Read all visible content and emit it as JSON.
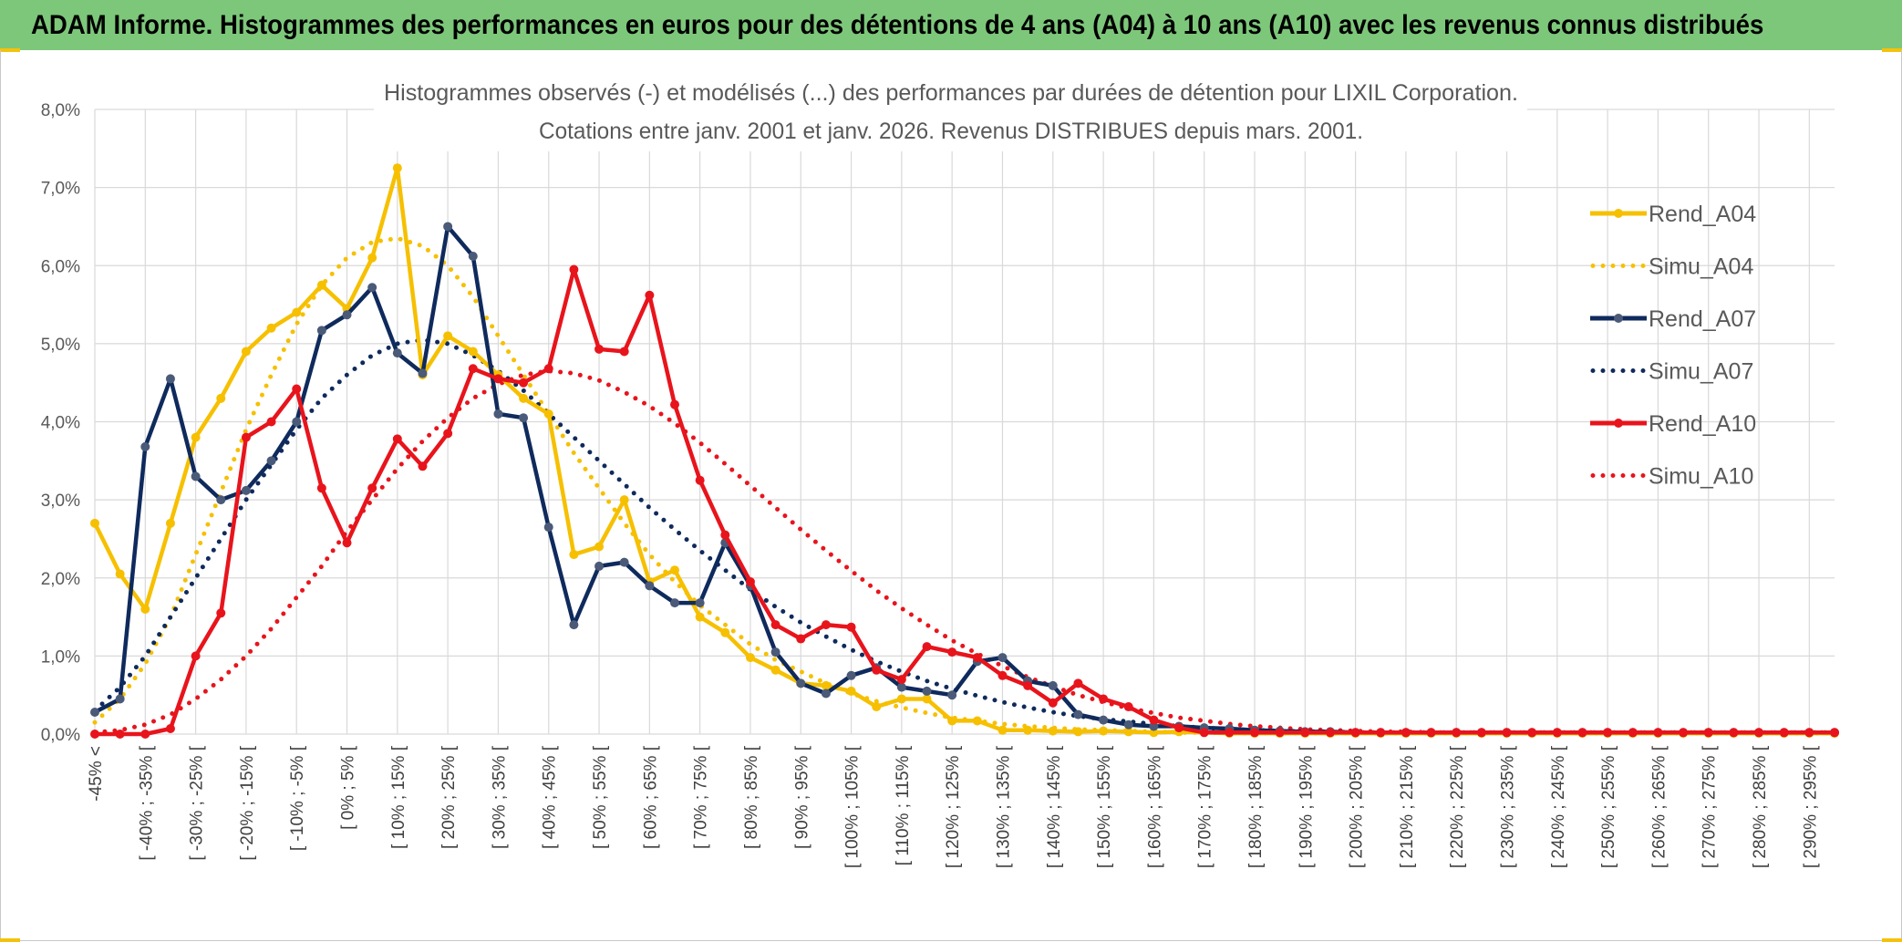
{
  "header": {
    "title": "ADAM Informe. Histogrammes des performances en euros pour des détentions de 4 ans (A04) à 10 ans (A10) avec les revenus connus distribués"
  },
  "chart_data": {
    "type": "line",
    "title": "Histogrammes observés (-) et modélisés (...) des performances par durées de détention pour LIXIL Corporation.",
    "subtitle": "Cotations entre janv. 2001 et janv. 2026. Revenus DISTRIBUES depuis mars. 2001.",
    "ylim": [
      0,
      8
    ],
    "yticks": [
      "0,0%",
      "1,0%",
      "2,0%",
      "3,0%",
      "4,0%",
      "5,0%",
      "6,0%",
      "7,0%",
      "8,0%"
    ],
    "x_labels": [
      "-45% <",
      "[ -40% ; -35% [",
      "[ -30% ; -25% [",
      "[ -20% ; -15% [",
      "[ -10% ; -5% [",
      "[ 0% ; 5% [",
      "[ 10% ; 15% [",
      "[ 20% ; 25% [",
      "[ 30% ; 35% [",
      "[ 40% ; 45% [",
      "[ 50% ; 55% [",
      "[ 60% ; 65% [",
      "[ 70% ; 75% [",
      "[ 80% ; 85% [",
      "[ 90% ; 95% [",
      "[ 100% ; 105% [",
      "[ 110% ; 115% [",
      "[ 120% ; 125% [",
      "[ 130% ; 135% [",
      "[ 140% ; 145% [",
      "[ 150% ; 155% [",
      "[ 160% ; 165% [",
      "[ 170% ; 175% [",
      "[ 180% ; 185% [",
      "[ 190% ; 195% [",
      "[ 200% ; 205% [",
      "[ 210% ; 215% [",
      "[ 220% ; 225% [",
      "[ 230% ; 235% [",
      "[ 240% ; 245% [",
      "[ 250% ; 255% [",
      "[ 260% ; 265% [",
      "[ 270% ; 275% [",
      "[ 280% ; 285% [",
      "[ 290% ; 295% ["
    ],
    "grid": true,
    "legend_position": "right",
    "series": [
      {
        "name": "Rend_A04",
        "style": "solid",
        "color": "#f6c000",
        "values": [
          2.7,
          2.05,
          1.6,
          2.7,
          3.8,
          4.3,
          4.9,
          5.2,
          5.4,
          5.75,
          5.45,
          6.1,
          7.25,
          4.6,
          5.1,
          4.9,
          4.6,
          4.3,
          4.1,
          2.3,
          2.4,
          3.0,
          1.95,
          2.1,
          1.5,
          1.3,
          0.98,
          0.82,
          0.65,
          0.62,
          0.55,
          0.35,
          0.45,
          0.45,
          0.17,
          0.17,
          0.05,
          0.05,
          0.04,
          0.03,
          0.04,
          0.03,
          0.02,
          0.03,
          0.02,
          0.01,
          0.01,
          0.01,
          0.01,
          0.01,
          0.01,
          0.01,
          0.01,
          0.01,
          0.01,
          0.01,
          0.01,
          0.01,
          0.01,
          0.01,
          0.01,
          0.01,
          0.01,
          0.01,
          0.01,
          0.01,
          0.01,
          0.01,
          0.01,
          0.01
        ]
      },
      {
        "name": "Simu_A04",
        "style": "dotted",
        "color": "#f6c000",
        "values": [
          0.15,
          0.45,
          0.9,
          1.5,
          2.3,
          3.1,
          3.9,
          4.6,
          5.25,
          5.75,
          6.1,
          6.3,
          6.35,
          6.25,
          6.0,
          5.6,
          5.1,
          4.6,
          4.1,
          3.6,
          3.15,
          2.7,
          2.3,
          1.95,
          1.65,
          1.4,
          1.15,
          0.95,
          0.8,
          0.65,
          0.52,
          0.42,
          0.34,
          0.27,
          0.21,
          0.17,
          0.13,
          0.1,
          0.08,
          0.06,
          0.05,
          0.04,
          0.03,
          0.02,
          0.02,
          0.01,
          0.01,
          0.01,
          0.01,
          0.01,
          0.01,
          0.01,
          0.01,
          0.01,
          0.01,
          0.01,
          0.01,
          0.01,
          0.01,
          0.01,
          0.01,
          0.01,
          0.01,
          0.01,
          0.01,
          0.01,
          0.01,
          0.01,
          0.01,
          0.01
        ]
      },
      {
        "name": "Rend_A07",
        "style": "solid",
        "color": "#0f2a5c",
        "values": [
          0.28,
          0.45,
          3.68,
          4.55,
          3.3,
          3.0,
          3.12,
          3.5,
          4.0,
          5.17,
          5.37,
          5.72,
          4.88,
          4.62,
          6.5,
          6.12,
          4.1,
          4.05,
          2.65,
          1.4,
          2.15,
          2.2,
          1.9,
          1.68,
          1.68,
          2.45,
          1.9,
          1.05,
          0.65,
          0.52,
          0.75,
          0.85,
          0.6,
          0.55,
          0.5,
          0.93,
          0.98,
          0.68,
          0.62,
          0.25,
          0.18,
          0.12,
          0.1,
          0.1,
          0.08,
          0.07,
          0.05,
          0.04,
          0.03,
          0.03,
          0.02,
          0.02,
          0.02,
          0.02,
          0.02,
          0.02,
          0.02,
          0.02,
          0.02,
          0.02,
          0.02,
          0.02,
          0.02,
          0.02,
          0.02,
          0.02,
          0.02,
          0.02,
          0.02,
          0.02
        ]
      },
      {
        "name": "Simu_A07",
        "style": "dotted",
        "color": "#0f2a5c",
        "values": [
          0.3,
          0.6,
          1.0,
          1.5,
          2.0,
          2.5,
          3.0,
          3.45,
          3.9,
          4.3,
          4.6,
          4.85,
          5.0,
          5.05,
          5.0,
          4.85,
          4.65,
          4.4,
          4.1,
          3.8,
          3.5,
          3.2,
          2.9,
          2.62,
          2.35,
          2.1,
          1.85,
          1.63,
          1.43,
          1.25,
          1.08,
          0.93,
          0.8,
          0.68,
          0.58,
          0.49,
          0.41,
          0.34,
          0.28,
          0.23,
          0.19,
          0.16,
          0.13,
          0.1,
          0.08,
          0.06,
          0.05,
          0.04,
          0.03,
          0.03,
          0.02,
          0.02,
          0.02,
          0.02,
          0.02,
          0.02,
          0.02,
          0.02,
          0.02,
          0.02,
          0.02,
          0.02,
          0.02,
          0.02,
          0.02,
          0.02,
          0.02,
          0.02,
          0.02,
          0.02
        ]
      },
      {
        "name": "Rend_A10",
        "style": "solid",
        "color": "#e8141c",
        "values": [
          0.0,
          0.0,
          0.0,
          0.07,
          1.0,
          1.55,
          3.8,
          4.0,
          4.42,
          3.15,
          2.45,
          3.15,
          3.78,
          3.43,
          3.85,
          4.68,
          4.55,
          4.5,
          4.68,
          5.95,
          4.93,
          4.9,
          5.62,
          4.22,
          3.25,
          2.55,
          1.95,
          1.4,
          1.22,
          1.4,
          1.37,
          0.82,
          0.7,
          1.12,
          1.05,
          0.98,
          0.75,
          0.62,
          0.4,
          0.65,
          0.45,
          0.35,
          0.18,
          0.08,
          0.02,
          0.02,
          0.02,
          0.02,
          0.02,
          0.02,
          0.02,
          0.02,
          0.02,
          0.02,
          0.02,
          0.02,
          0.02,
          0.02,
          0.02,
          0.02,
          0.02,
          0.02,
          0.02,
          0.02,
          0.02,
          0.02,
          0.02,
          0.02,
          0.02,
          0.02
        ]
      },
      {
        "name": "Simu_A10",
        "style": "dotted",
        "color": "#e8141c",
        "values": [
          0.02,
          0.05,
          0.12,
          0.25,
          0.45,
          0.7,
          1.0,
          1.35,
          1.75,
          2.15,
          2.6,
          3.0,
          3.4,
          3.75,
          4.05,
          4.3,
          4.48,
          4.6,
          4.65,
          4.62,
          4.53,
          4.38,
          4.2,
          3.98,
          3.73,
          3.46,
          3.18,
          2.9,
          2.62,
          2.35,
          2.09,
          1.84,
          1.61,
          1.4,
          1.2,
          1.03,
          0.87,
          0.73,
          0.61,
          0.5,
          0.41,
          0.33,
          0.27,
          0.21,
          0.17,
          0.13,
          0.1,
          0.08,
          0.06,
          0.05,
          0.04,
          0.03,
          0.03,
          0.02,
          0.02,
          0.02,
          0.02,
          0.02,
          0.02,
          0.02,
          0.02,
          0.02,
          0.02,
          0.02,
          0.02,
          0.02,
          0.02,
          0.02,
          0.02,
          0.02
        ]
      }
    ]
  }
}
